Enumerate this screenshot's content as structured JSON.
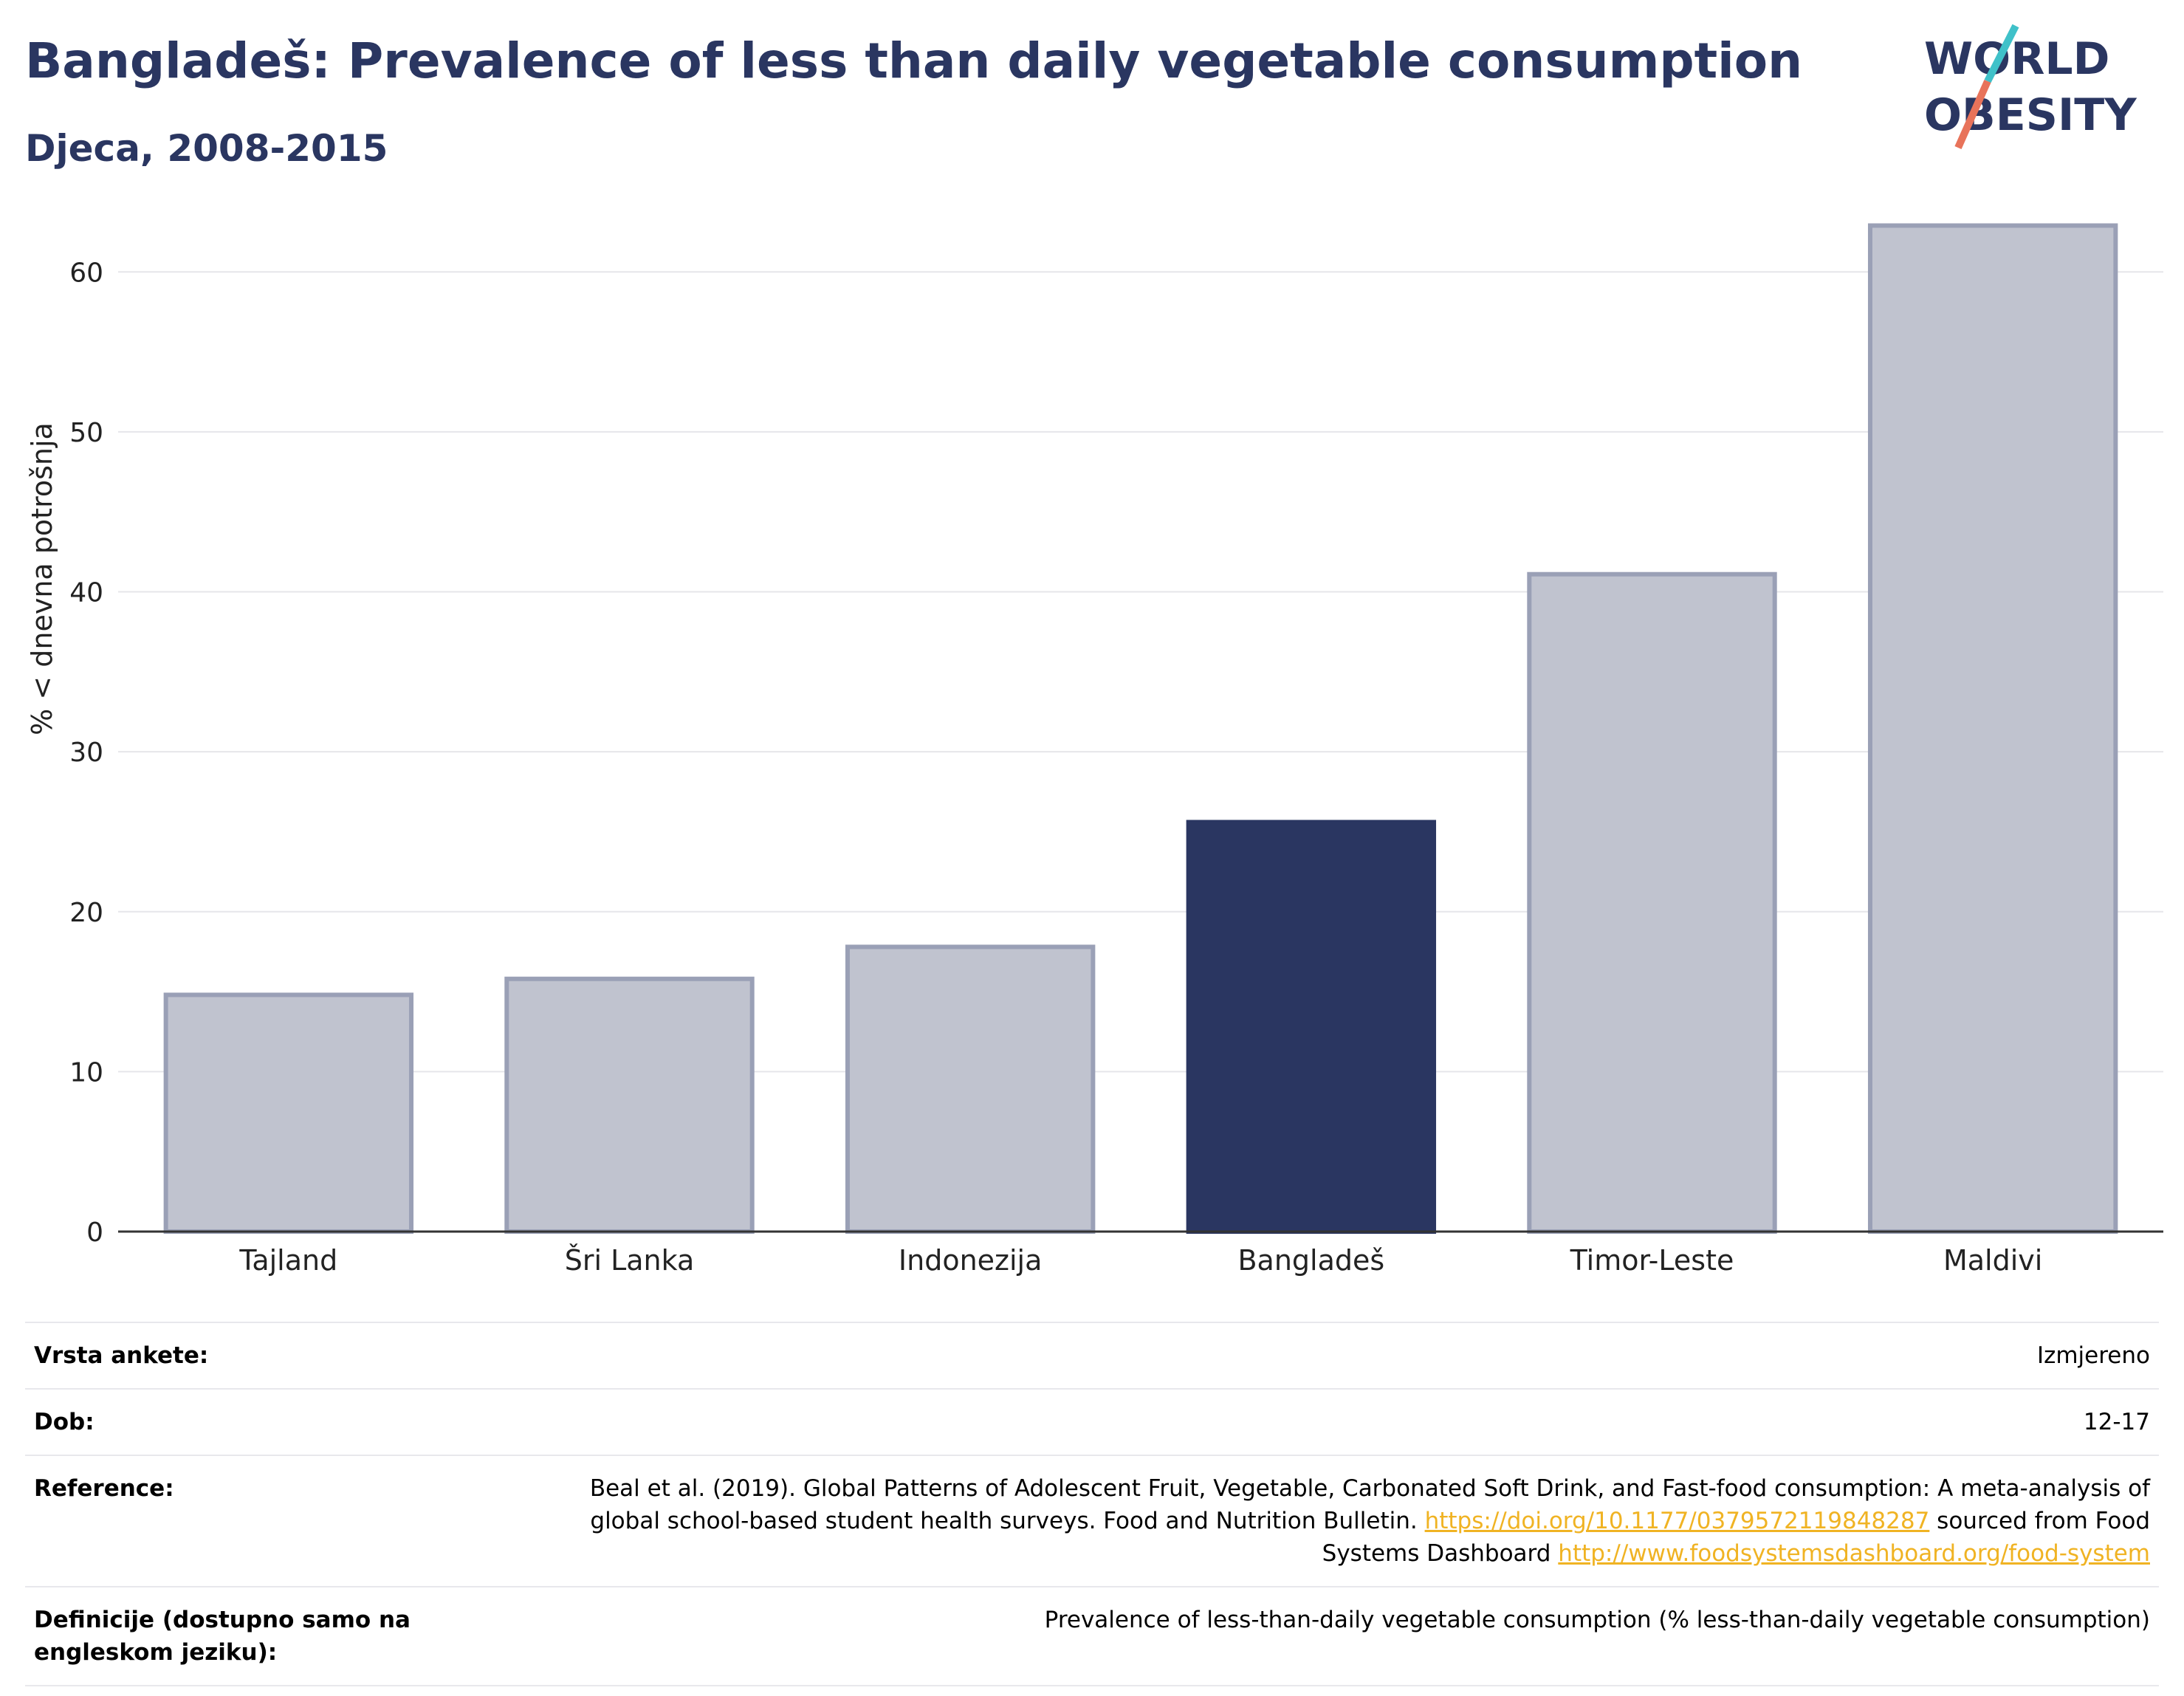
{
  "header": {
    "title": "Bangladeš: Prevalence of less than daily vegetable consumption",
    "subtitle": "Djeca, 2008-2015"
  },
  "logo": {
    "line1": "WORLD",
    "line2": "OBESITY",
    "colors": {
      "text": "#2a3661",
      "slash_teal": "#3fc1c9",
      "slash_coral": "#e8735a"
    }
  },
  "chart_data": {
    "type": "bar",
    "title": "Bangladeš: Prevalence of less than daily vegetable consumption",
    "ylabel": "% < dnevna potrošnja",
    "ylim": [
      0,
      65
    ],
    "yticks": [
      0,
      10,
      20,
      30,
      40,
      50,
      60
    ],
    "grid": true,
    "categories": [
      "Tajland",
      "Šri Lanka",
      "Indonezija",
      "Bangladeš",
      "Timor-Leste",
      "Maldivi"
    ],
    "values": [
      14.8,
      15.8,
      17.8,
      25.6,
      41.1,
      62.9
    ],
    "highlight": "Bangladeš",
    "colors": {
      "bar": "#c0c3cf",
      "bar_edge": "#9aa0b6",
      "highlight": "#2a3661",
      "grid": "#e6e6ea",
      "axis": "#333333"
    }
  },
  "meta": {
    "rows": [
      {
        "label": "Vrsta ankete:",
        "value": "Izmjereno"
      },
      {
        "label": "Dob:",
        "value": "12-17"
      },
      {
        "label": "Reference:",
        "value_pre": "Beal et al. (2019). Global Patterns of Adolescent Fruit, Vegetable, Carbonated Soft Drink, and Fast-food consumption: A meta-analysis of global school-based student health surveys. Food and Nutrition Bulletin. ",
        "link1": "https://doi.org/10.1177/0379572119848287",
        "value_mid": " sourced from Food Systems Dashboard ",
        "link2": "http://www.foodsystemsdashboard.org/food-system"
      },
      {
        "label": "Definicije (dostupno samo na engleskom jeziku):",
        "value": "Prevalence of less-than-daily vegetable consumption (% less-than-daily vegetable consumption)"
      }
    ]
  }
}
